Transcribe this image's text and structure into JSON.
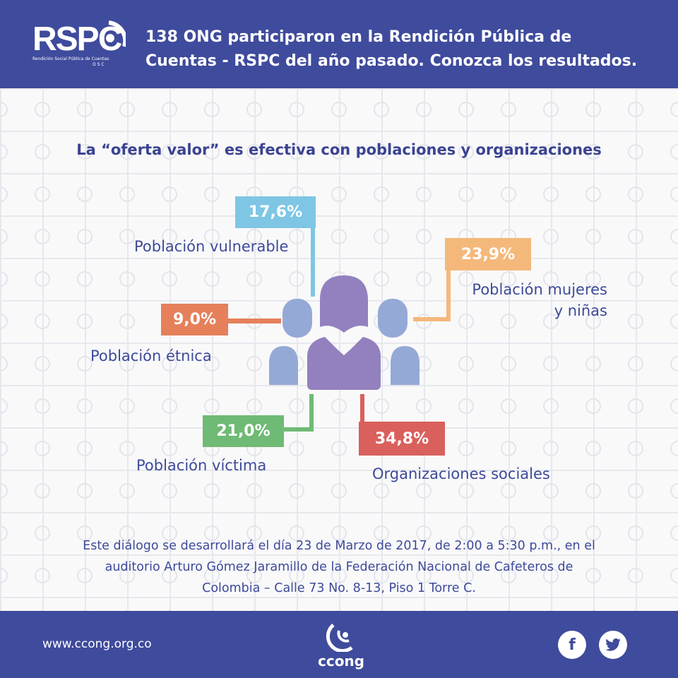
{
  "header": {
    "logo_text": "RSPC",
    "logo_subtitle": "Rendición Social Pública de Cuentas",
    "logo_tag": "O S C",
    "title_line1": "138 ONG participaron en la Rendición Pública de",
    "title_line2": "Cuentas - RSPC del año pasado. Conozca los resultados."
  },
  "main": {
    "title": "La “oferta valor” es efectiva con poblaciones y organizaciones",
    "items": [
      {
        "value": "17,6%",
        "label": "Población vulnerable",
        "color": "#7ec6e4"
      },
      {
        "value": "23,9%",
        "label_line1": "Población mujeres",
        "label_line2": "y niñas",
        "color": "#f4b87a"
      },
      {
        "value": "9,0%",
        "label": "Población étnica",
        "color": "#e5805b"
      },
      {
        "value": "21,0%",
        "label": "Población víctima",
        "color": "#6fba74"
      },
      {
        "value": "34,8%",
        "label": "Organizaciones sociales",
        "color": "#d9605c"
      }
    ],
    "paragraph_line1": "Este diálogo se desarrollará el día 23 de Marzo de 2017, de 2:00 a 5:30 p.m., en el",
    "paragraph_line2": "auditorio Arturo Gómez Jaramillo de la Federación Nacional de Cafeteros de",
    "paragraph_line3": "Colombia – Calle 73 No. 8-13, Piso 1 Torre C."
  },
  "footer": {
    "url": "www.ccong.org.co",
    "logo_text": "ccong",
    "facebook": "f",
    "twitter": "twitter-icon"
  }
}
